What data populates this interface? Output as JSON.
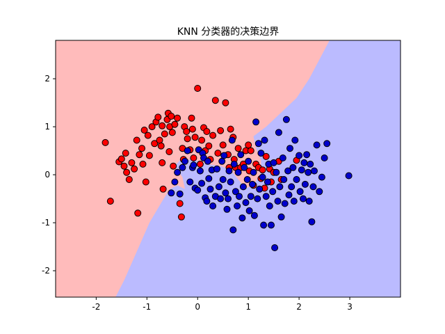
{
  "chart_data": {
    "type": "scatter",
    "title": "KNN 分类器的决策边界",
    "xlabel": "",
    "ylabel": "",
    "xlim": [
      -2.8,
      4.0
    ],
    "ylim": [
      -2.55,
      2.8
    ],
    "x_ticks": [
      -2,
      -1,
      0,
      1,
      2,
      3
    ],
    "y_ticks": [
      -2,
      -1,
      0,
      1,
      2
    ],
    "grid": false,
    "legend": "none",
    "background": "decision-regions (k-nearest-neighbour classifier) shading the plot area",
    "region_colors": {
      "class_0": "#ffbbbb",
      "class_1": "#bbbbff"
    },
    "series": [
      {
        "color": "#ff0000",
        "points": [
          [
            -1.82,
            0.67
          ],
          [
            -1.72,
            -0.55
          ],
          [
            -1.55,
            0.27
          ],
          [
            -1.5,
            0.33
          ],
          [
            -1.45,
            0.18
          ],
          [
            -1.42,
            0.45
          ],
          [
            -1.4,
            0.05
          ],
          [
            -1.35,
            -0.1
          ],
          [
            -1.3,
            0.25
          ],
          [
            -1.25,
            0.12
          ],
          [
            -1.2,
            0.72
          ],
          [
            -1.18,
            -0.8
          ],
          [
            -1.15,
            0.42
          ],
          [
            -1.1,
            0.55
          ],
          [
            -1.08,
            0.22
          ],
          [
            -1.05,
            0.93
          ],
          [
            -1.02,
            -0.15
          ],
          [
            -0.98,
            0.82
          ],
          [
            -0.95,
            0.4
          ],
          [
            -0.9,
            1.0
          ],
          [
            -0.85,
            0.65
          ],
          [
            -0.82,
            1.1
          ],
          [
            -0.78,
            1.2
          ],
          [
            -0.75,
            0.72
          ],
          [
            -0.72,
            0.6
          ],
          [
            -0.7,
            1.02
          ],
          [
            -0.7,
            0.25
          ],
          [
            -0.68,
            -0.3
          ],
          [
            -0.65,
            0.85
          ],
          [
            -0.6,
            1.15
          ],
          [
            -0.58,
            1.28
          ],
          [
            -0.56,
            0.48
          ],
          [
            -0.55,
            1.0
          ],
          [
            -0.52,
            1.22
          ],
          [
            -0.5,
            0.88
          ],
          [
            -0.48,
            0.18
          ],
          [
            -0.45,
            1.05
          ],
          [
            -0.4,
            1.18
          ],
          [
            -0.35,
            -0.6
          ],
          [
            -0.32,
            -0.88
          ],
          [
            -0.3,
            0.55
          ],
          [
            -0.28,
            0.32
          ],
          [
            -0.26,
            1.0
          ],
          [
            -0.22,
            0.9
          ],
          [
            -0.2,
            0.75
          ],
          [
            -0.15,
            0.52
          ],
          [
            -0.12,
            1.18
          ],
          [
            -0.1,
            0.95
          ],
          [
            -0.08,
            0.35
          ],
          [
            -0.05,
            0.78
          ],
          [
            0.0,
            1.8
          ],
          [
            0.05,
            0.22
          ],
          [
            0.08,
            0.72
          ],
          [
            0.12,
            0.98
          ],
          [
            0.15,
            0.5
          ],
          [
            0.18,
            0.9
          ],
          [
            0.22,
            0.6
          ],
          [
            0.25,
            0.32
          ],
          [
            0.3,
            0.82
          ],
          [
            0.35,
            1.55
          ],
          [
            0.4,
            0.45
          ],
          [
            0.45,
            0.92
          ],
          [
            0.5,
            0.62
          ],
          [
            0.55,
            1.5
          ],
          [
            0.6,
            0.42
          ],
          [
            0.62,
            0.15
          ],
          [
            0.65,
            0.95
          ],
          [
            0.7,
            0.78
          ],
          [
            0.72,
            0.32
          ],
          [
            0.75,
            0.15
          ],
          [
            0.8,
            0.55
          ],
          [
            0.85,
            0.15
          ],
          [
            0.9,
            0.22
          ],
          [
            0.95,
            0.5
          ],
          [
            1.0,
            0.62
          ],
          [
            1.02,
            0.08
          ],
          [
            1.05,
            0.5
          ],
          [
            1.1,
            -0.22
          ],
          [
            1.15,
            0.22
          ],
          [
            1.2,
            0.15
          ],
          [
            1.25,
            -0.08
          ],
          [
            1.28,
            0.1
          ],
          [
            1.32,
            -0.28
          ],
          [
            1.35,
            0.38
          ],
          [
            1.42,
            0.12
          ],
          [
            1.45,
            -0.15
          ],
          [
            1.5,
            0.05
          ],
          [
            1.6,
            0.28
          ],
          [
            1.65,
            -0.1
          ],
          [
            1.95,
            0.3
          ]
        ]
      },
      {
        "color": "#0000cc",
        "points": [
          [
            -0.52,
            -0.38
          ],
          [
            -0.45,
            -0.15
          ],
          [
            -0.4,
            0.05
          ],
          [
            -0.35,
            -0.4
          ],
          [
            -0.3,
            0.15
          ],
          [
            -0.25,
            0.28
          ],
          [
            -0.2,
            0.5
          ],
          [
            -0.15,
            -0.15
          ],
          [
            -0.1,
            0.15
          ],
          [
            -0.08,
            0.2
          ],
          [
            -0.05,
            -0.28
          ],
          [
            0.0,
            -0.32
          ],
          [
            0.02,
            0.52
          ],
          [
            0.05,
            0.08
          ],
          [
            0.08,
            -0.18
          ],
          [
            0.1,
            0.45
          ],
          [
            0.12,
            0.35
          ],
          [
            0.15,
            -0.48
          ],
          [
            0.18,
            -0.55
          ],
          [
            0.2,
            0.28
          ],
          [
            0.22,
            -0.08
          ],
          [
            0.25,
            -0.3
          ],
          [
            0.28,
            0.1
          ],
          [
            0.3,
            -0.65
          ],
          [
            0.35,
            -0.45
          ],
          [
            0.38,
            0.12
          ],
          [
            0.42,
            -0.25
          ],
          [
            0.45,
            -0.5
          ],
          [
            0.48,
            0.28
          ],
          [
            0.5,
            -0.1
          ],
          [
            0.52,
            0.4
          ],
          [
            0.55,
            -0.38
          ],
          [
            0.58,
            -0.72
          ],
          [
            0.6,
            -0.5
          ],
          [
            0.62,
            0.08
          ],
          [
            0.65,
            -0.15
          ],
          [
            0.68,
            0.72
          ],
          [
            0.7,
            -1.15
          ],
          [
            0.72,
            0.22
          ],
          [
            0.75,
            -0.35
          ],
          [
            0.78,
            -0.65
          ],
          [
            0.8,
            0.05
          ],
          [
            0.82,
            -0.45
          ],
          [
            0.85,
            0.42
          ],
          [
            0.88,
            -0.9
          ],
          [
            0.9,
            -0.25
          ],
          [
            0.92,
            0.15
          ],
          [
            0.95,
            -0.58
          ],
          [
            0.98,
            -0.1
          ],
          [
            1.0,
            0.28
          ],
          [
            1.02,
            -0.75
          ],
          [
            1.05,
            -0.45
          ],
          [
            1.08,
            -0.2
          ],
          [
            1.1,
            0.05
          ],
          [
            1.12,
            -0.85
          ],
          [
            1.15,
            1.1
          ],
          [
            1.18,
            -0.5
          ],
          [
            1.2,
            0.65
          ],
          [
            1.22,
            -0.3
          ],
          [
            1.25,
            0.45
          ],
          [
            1.28,
            -0.05
          ],
          [
            1.3,
            -1.05
          ],
          [
            1.32,
            0.72
          ],
          [
            1.35,
            -0.45
          ],
          [
            1.38,
            -0.15
          ],
          [
            1.4,
            0.22
          ],
          [
            1.42,
            -0.65
          ],
          [
            1.45,
            -1.05
          ],
          [
            1.48,
            -0.35
          ],
          [
            1.5,
            0.25
          ],
          [
            1.52,
            -1.52
          ],
          [
            1.55,
            0.05
          ],
          [
            1.58,
            -0.55
          ],
          [
            1.6,
            0.88
          ],
          [
            1.62,
            -0.25
          ],
          [
            1.65,
            -0.88
          ],
          [
            1.68,
            0.35
          ],
          [
            1.7,
            -0.1
          ],
          [
            1.72,
            -0.6
          ],
          [
            1.75,
            1.15
          ],
          [
            1.78,
            0.08
          ],
          [
            1.8,
            -0.42
          ],
          [
            1.82,
            0.55
          ],
          [
            1.85,
            -0.25
          ],
          [
            1.88,
            0.15
          ],
          [
            1.9,
            -0.55
          ],
          [
            1.92,
            0.72
          ],
          [
            1.95,
            -0.1
          ],
          [
            2.0,
            0.4
          ],
          [
            2.02,
            -0.35
          ],
          [
            2.05,
            0.1
          ],
          [
            2.08,
            -0.5
          ],
          [
            2.1,
            0.25
          ],
          [
            2.12,
            -0.2
          ],
          [
            2.15,
            0.42
          ],
          [
            2.18,
            0.05
          ],
          [
            2.2,
            -0.55
          ],
          [
            2.22,
            0.22
          ],
          [
            2.25,
            -0.98
          ],
          [
            2.28,
            -0.25
          ],
          [
            2.3,
            0.08
          ],
          [
            2.35,
            0.62
          ],
          [
            2.4,
            -0.35
          ],
          [
            2.45,
            -0.05
          ],
          [
            2.5,
            0.35
          ],
          [
            2.55,
            0.65
          ],
          [
            2.98,
            -0.02
          ]
        ]
      }
    ]
  }
}
